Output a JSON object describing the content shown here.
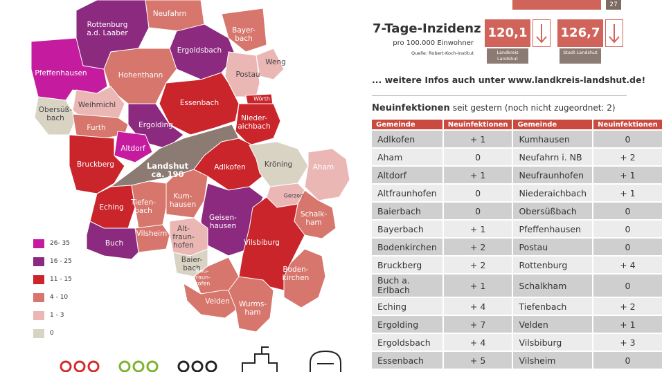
{
  "header": {
    "badge": "27"
  },
  "incidence": {
    "title": "7-Tage-Inzidenz",
    "subtitle": "pro 100.000 Einwohner",
    "source": "Quelle: Robert-Koch-Institut",
    "items": [
      {
        "value": "120,1",
        "label": "Landkreis Landshut"
      },
      {
        "value": "126,7",
        "label": "Stadt Landshut"
      }
    ]
  },
  "info": "... weitere Infos auch unter www.landkreis-landshut.de!",
  "table": {
    "title": "Neuinfektionen",
    "subtitle": "seit gestern (noch nicht zugeordnet: 2)",
    "columns": [
      "Gemeinde",
      "Neuinfektionen",
      "Gemeinde",
      "Neuinfektionen"
    ],
    "rows": [
      [
        "Adlkofen",
        "+ 1",
        "Kumhausen",
        "0"
      ],
      [
        "Aham",
        "0",
        "Neufahrn i. NB",
        "+ 2"
      ],
      [
        "Altdorf",
        "+ 1",
        "Neufraunhofen",
        "+ 1"
      ],
      [
        "Altfraunhofen",
        "0",
        "Niederaichbach",
        "+ 1"
      ],
      [
        "Baierbach",
        "0",
        "Obersüßbach",
        "0"
      ],
      [
        "Bayerbach",
        "+ 1",
        "Pfeffenhausen",
        "0"
      ],
      [
        "Bodenkirchen",
        "+ 2",
        "Postau",
        "0"
      ],
      [
        "Bruckberg",
        "+ 2",
        "Rottenburg",
        "+ 4"
      ],
      [
        "Buch a. Erlbach",
        "+ 1",
        "Schalkham",
        "0"
      ],
      [
        "Eching",
        "+ 4",
        "Tiefenbach",
        "+ 2"
      ],
      [
        "Ergolding",
        "+ 7",
        "Velden",
        "+ 1"
      ],
      [
        "Ergoldsbach",
        "+ 4",
        "Vilsbiburg",
        "+ 3"
      ],
      [
        "Essenbach",
        "+ 5",
        "Vilsheim",
        "0"
      ]
    ]
  },
  "map": {
    "legend": [
      {
        "label": "26- 35",
        "color": "#c51b9f"
      },
      {
        "label": "16 - 25",
        "color": "#8b2a7f"
      },
      {
        "label": "11 - 15",
        "color": "#c9252b"
      },
      {
        "label": "4 - 10",
        "color": "#d6766c"
      },
      {
        "label": "1 - 3",
        "color": "#ebb7b5"
      },
      {
        "label": "0",
        "color": "#d9d3c4"
      }
    ],
    "regions": [
      {
        "label": "Rottenburg\na.d. Laaber",
        "color": "#8b2a7f"
      },
      {
        "label": "Neufahrn",
        "color": "#d6766c"
      },
      {
        "label": "Bayer-\nbach",
        "color": "#d6766c"
      },
      {
        "label": "Ergoldsbach",
        "color": "#8b2a7f"
      },
      {
        "label": "Pfeffenhausen",
        "color": "#c51b9f"
      },
      {
        "label": "Hohenthann",
        "color": "#d6766c"
      },
      {
        "label": "Postau",
        "color": "#ebb7b5"
      },
      {
        "label": "Weng",
        "color": "#ebb7b5"
      },
      {
        "label": "Essenbach",
        "color": "#c9252b"
      },
      {
        "label": "Wörth",
        "color": "#c9252b"
      },
      {
        "label": "Weihmichl",
        "color": "#ebb7b5"
      },
      {
        "label": "Obersüß-\nbach",
        "color": "#d9d3c4"
      },
      {
        "label": "Nieder-\naichbach",
        "color": "#c9252b"
      },
      {
        "label": "Ergolding",
        "color": "#8b2a7f"
      },
      {
        "label": "Furth",
        "color": "#d6766c"
      },
      {
        "label": "Altdorf",
        "color": "#c51b9f"
      },
      {
        "label": "Bruckberg",
        "color": "#c9252b"
      },
      {
        "label": "Landshut\nca. 190",
        "color": "#8c7b73"
      },
      {
        "label": "Adlkofen",
        "color": "#c9252b"
      },
      {
        "label": "Kröning",
        "color": "#d9d3c4"
      },
      {
        "label": "Aham",
        "color": "#ebb7b5"
      },
      {
        "label": "Gerzen",
        "color": "#ebb7b5"
      },
      {
        "label": "Eching",
        "color": "#c9252b"
      },
      {
        "label": "Tiefen-\nbach",
        "color": "#d6766c"
      },
      {
        "label": "Kum-\nhausen",
        "color": "#d6766c"
      },
      {
        "label": "Geisen-\nhausen",
        "color": "#8b2a7f"
      },
      {
        "label": "Schalk-\nham",
        "color": "#d6766c"
      },
      {
        "label": "Vilsbiburg",
        "color": "#c9252b"
      },
      {
        "label": "Vilsheim",
        "color": "#d6766c"
      },
      {
        "label": "Buch",
        "color": "#8b2a7f"
      },
      {
        "label": "Alt-\nfraun-\nhofen",
        "color": "#ebb7b5"
      },
      {
        "label": "Baier-\nbach",
        "color": "#d9d3c4"
      },
      {
        "label": "Neu-\nfraun-\nhofen",
        "color": "#d6766c"
      },
      {
        "label": "Boden-\nkirchen",
        "color": "#d6766c"
      },
      {
        "label": "Velden",
        "color": "#d6766c"
      },
      {
        "label": "Wurms-\nham",
        "color": "#d6766c"
      }
    ]
  }
}
